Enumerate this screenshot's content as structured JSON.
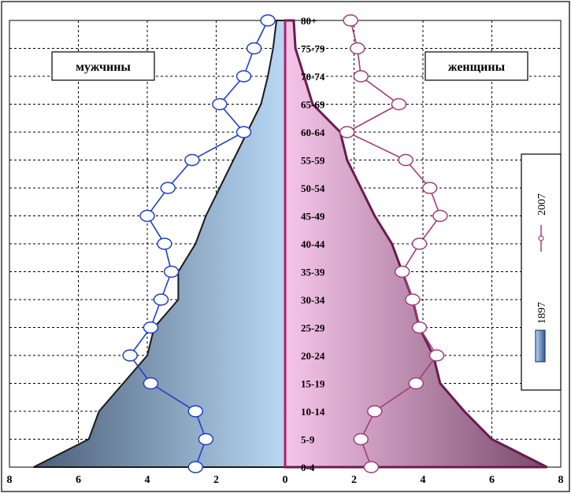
{
  "chart_data": {
    "type": "area",
    "labels": {
      "left": "мужчины",
      "right": "женщины"
    },
    "categories": [
      "0-4",
      "5-9",
      "10-14",
      "15-19",
      "20-24",
      "25-29",
      "30-34",
      "35-39",
      "40-44",
      "45-49",
      "50-54",
      "55-59",
      "60-64",
      "65-69",
      "70-74",
      "75-79",
      "80+"
    ],
    "x_ticks": [
      "8",
      "6",
      "4",
      "2",
      "0",
      "2",
      "4",
      "6",
      "8"
    ],
    "xlim": [
      -8,
      8
    ],
    "grid": true,
    "legend_position": "right",
    "series": [
      {
        "name": "1897",
        "style": "filled-area",
        "male": [
          7.3,
          5.7,
          5.4,
          4.7,
          4.0,
          3.8,
          3.1,
          3.1,
          2.6,
          2.3,
          1.9,
          1.5,
          1.1,
          0.7,
          0.5,
          0.35,
          0.25
        ],
        "female": [
          7.6,
          6.0,
          5.2,
          4.5,
          4.3,
          3.9,
          3.7,
          3.4,
          3.1,
          2.6,
          2.2,
          1.8,
          1.6,
          0.8,
          0.55,
          0.3,
          0.25
        ]
      },
      {
        "name": "2007",
        "style": "line-markers",
        "male": [
          2.6,
          2.3,
          2.6,
          3.9,
          4.5,
          3.9,
          3.6,
          3.3,
          3.5,
          4.0,
          3.4,
          2.7,
          1.2,
          1.9,
          1.2,
          0.9,
          0.5
        ],
        "female": [
          2.5,
          2.2,
          2.6,
          3.8,
          4.4,
          3.9,
          3.7,
          3.4,
          3.9,
          4.5,
          4.2,
          3.5,
          1.8,
          3.3,
          2.2,
          2.1,
          1.9
        ]
      }
    ],
    "colors": {
      "male_fill_light": "#b8d8f4",
      "male_fill_dark": "#4a5e78",
      "female_fill_light": "#f6c6ea",
      "female_fill_dark": "#7a4a6c",
      "male_line": "#1f3fc8",
      "female_line": "#a23c78",
      "outline": "#1a1a1a",
      "female_outline": "#6a1a4e"
    }
  }
}
